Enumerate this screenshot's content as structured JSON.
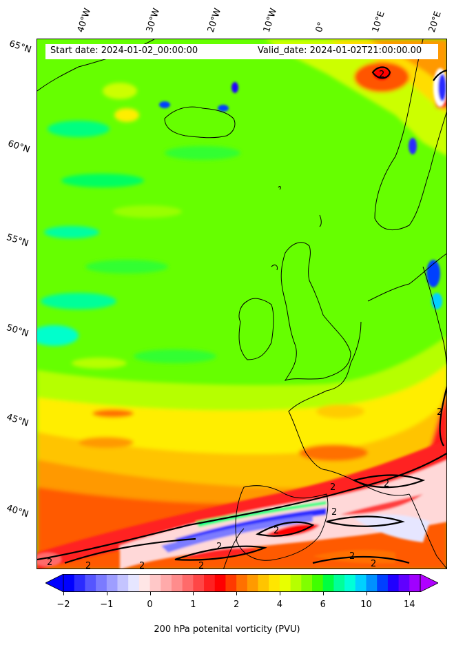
{
  "header": {
    "start_date": "Start date: 2024-01-02_00:00:00",
    "valid_date": "Valid_date: 2024-01-02T21:00:00.00"
  },
  "lon_labels": [
    "40°W",
    "30°W",
    "20°W",
    "10°W",
    "0°",
    "10°E",
    "20°E"
  ],
  "lat_labels": [
    "65°N",
    "60°N",
    "55°N",
    "50°N",
    "45°N",
    "40°N"
  ],
  "contour_label": "2",
  "colorbar": {
    "title": "200 hPa potenital vorticity (PVU)",
    "ticks": [
      "−2",
      "−1",
      "0",
      "1",
      "2",
      "4",
      "6",
      "10",
      "14"
    ],
    "colors": [
      "#0000ff",
      "#2b2bff",
      "#5656ff",
      "#7b7bff",
      "#9e9eff",
      "#c4c4ff",
      "#e6e6ff",
      "#ffe6e6",
      "#ffc8c8",
      "#ffaaaa",
      "#ff8c8c",
      "#ff6a6a",
      "#ff4646",
      "#ff2020",
      "#ff0000",
      "#ff3a00",
      "#ff7000",
      "#ff9a00",
      "#ffc400",
      "#ffe600",
      "#e8ff00",
      "#b6ff00",
      "#80ff00",
      "#40ff00",
      "#00ff40",
      "#00ff99",
      "#00ffd8",
      "#00d0ff",
      "#0090ff",
      "#0040ff",
      "#2000ff",
      "#6000ff",
      "#a000ff"
    ],
    "under_color": "#0000ff",
    "over_color": "#b000ff"
  }
}
